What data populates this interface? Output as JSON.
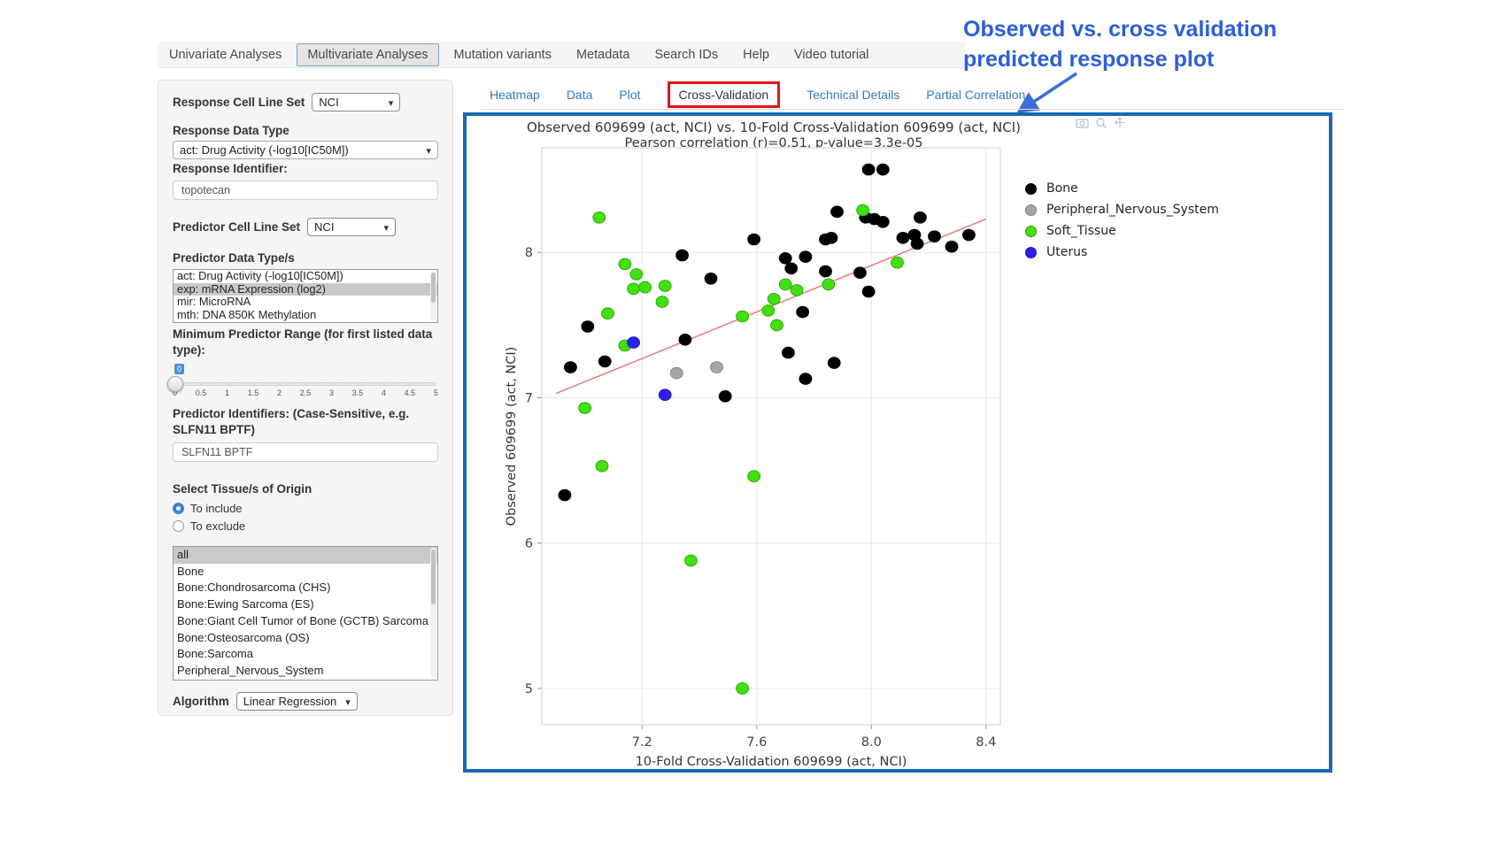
{
  "nav": {
    "tabs": [
      {
        "label": "Univariate Analyses",
        "active": false
      },
      {
        "label": "Multivariate Analyses",
        "active": true
      },
      {
        "label": "Mutation variants",
        "active": false
      },
      {
        "label": "Metadata",
        "active": false
      },
      {
        "label": "Search IDs",
        "active": false
      },
      {
        "label": "Help",
        "active": false
      },
      {
        "label": "Video tutorial",
        "active": false
      }
    ]
  },
  "annotation": {
    "line1": "Observed vs. cross validation",
    "line2": "predicted response plot"
  },
  "colors": {
    "annotation_blue": "#2b5fd9",
    "arrow_blue": "#3a6fd8",
    "frame_blue": "#1868b5",
    "highlight_red": "#e31515",
    "link_blue": "#337ab7"
  },
  "sidebar": {
    "response_cell_line_set": {
      "label": "Response Cell Line Set",
      "value": "NCI"
    },
    "response_data_type": {
      "label": "Response Data Type",
      "value": "act: Drug Activity (-log10[IC50M])"
    },
    "response_identifier": {
      "label": "Response Identifier:",
      "value": "topotecan"
    },
    "predictor_cell_line_set": {
      "label": "Predictor Cell Line Set",
      "value": "NCI"
    },
    "predictor_data_types": {
      "label": "Predictor Data Type/s",
      "options": [
        {
          "label": "act: Drug Activity (-log10[IC50M])",
          "selected": false
        },
        {
          "label": "exp: mRNA Expression (log2)",
          "selected": true
        },
        {
          "label": "mir: MicroRNA",
          "selected": false
        },
        {
          "label": "mth: DNA 850K Methylation",
          "selected": false
        }
      ]
    },
    "min_predictor_range": {
      "label": "Minimum Predictor Range (for first listed data type):",
      "value": "0",
      "ticks": [
        "0",
        "0.5",
        "1",
        "1.5",
        "2",
        "2.5",
        "3",
        "3.5",
        "4",
        "4.5",
        "5"
      ]
    },
    "predictor_identifiers": {
      "label": "Predictor Identifiers: (Case-Sensitive, e.g. SLFN11 BPTF)",
      "value": "SLFN11 BPTF"
    },
    "tissue_origin": {
      "label": "Select Tissue/s of Origin",
      "radios": [
        {
          "label": "To include",
          "selected": true
        },
        {
          "label": "To exclude",
          "selected": false
        }
      ],
      "options": [
        {
          "label": "all",
          "selected": true
        },
        {
          "label": "Bone",
          "selected": false
        },
        {
          "label": "Bone:Chondrosarcoma (CHS)",
          "selected": false
        },
        {
          "label": "Bone:Ewing Sarcoma (ES)",
          "selected": false
        },
        {
          "label": "Bone:Giant Cell Tumor of Bone (GCTB) Sarcoma",
          "selected": false
        },
        {
          "label": "Bone:Osteosarcoma (OS)",
          "selected": false
        },
        {
          "label": "Bone:Sarcoma",
          "selected": false
        },
        {
          "label": "Peripheral_Nervous_System",
          "selected": false
        }
      ]
    },
    "algorithm": {
      "label": "Algorithm",
      "value": "Linear Regression"
    }
  },
  "main": {
    "tabs": [
      {
        "label": "Heatmap",
        "active": false
      },
      {
        "label": "Data",
        "active": false
      },
      {
        "label": "Plot",
        "active": false
      },
      {
        "label": "Cross-Validation",
        "active": true
      },
      {
        "label": "Technical Details",
        "active": false
      },
      {
        "label": "Partial Correlation",
        "active": false
      }
    ]
  },
  "chart_data": {
    "type": "scatter",
    "title": "Observed 609699 (act, NCI) vs. 10-Fold Cross-Validation 609699 (act, NCI)",
    "subtitle": "Pearson correlation (r)=0.51, p-value=3.3e-05",
    "xlabel": "10-Fold Cross-Validation 609699 (act, NCI)",
    "ylabel": "Observed 609699 (act, NCI)",
    "xlim": [
      6.85,
      8.45
    ],
    "ylim": [
      4.75,
      8.72
    ],
    "xticks": [
      7.2,
      7.6,
      8.0,
      8.4
    ],
    "yticks": [
      5,
      6,
      7,
      8
    ],
    "grid": true,
    "legend_position": "right",
    "regression_line": {
      "x": [
        6.9,
        8.4
      ],
      "y": [
        7.03,
        8.23
      ],
      "color": "#f07070"
    },
    "series": [
      {
        "name": "Bone",
        "color": "#000000",
        "stroke": "#000000",
        "points": [
          [
            7.99,
            8.57
          ],
          [
            8.04,
            8.57
          ],
          [
            7.88,
            8.28
          ],
          [
            7.98,
            8.24
          ],
          [
            8.01,
            8.23
          ],
          [
            8.04,
            8.21
          ],
          [
            8.17,
            8.24
          ],
          [
            7.59,
            8.09
          ],
          [
            7.84,
            8.09
          ],
          [
            7.86,
            8.1
          ],
          [
            8.11,
            8.1
          ],
          [
            8.15,
            8.12
          ],
          [
            8.16,
            8.06
          ],
          [
            8.22,
            8.11
          ],
          [
            8.28,
            8.04
          ],
          [
            8.34,
            8.12
          ],
          [
            7.34,
            7.98
          ],
          [
            7.7,
            7.96
          ],
          [
            7.72,
            7.89
          ],
          [
            7.77,
            7.97
          ],
          [
            7.84,
            7.87
          ],
          [
            7.96,
            7.86
          ],
          [
            7.44,
            7.82
          ],
          [
            7.99,
            7.73
          ],
          [
            7.76,
            7.59
          ],
          [
            7.01,
            7.49
          ],
          [
            7.35,
            7.4
          ],
          [
            7.71,
            7.31
          ],
          [
            6.95,
            7.21
          ],
          [
            7.07,
            7.25
          ],
          [
            7.87,
            7.24
          ],
          [
            7.77,
            7.13
          ],
          [
            7.49,
            7.01
          ],
          [
            6.93,
            6.33
          ]
        ]
      },
      {
        "name": "Peripheral_Nervous_System",
        "color": "#a6a6a6",
        "stroke": "#7d7d7d",
        "points": [
          [
            7.32,
            7.17
          ],
          [
            7.46,
            7.21
          ]
        ]
      },
      {
        "name": "Soft_Tissue",
        "color": "#41e00e",
        "stroke": "#1f9e06",
        "points": [
          [
            7.05,
            8.24
          ],
          [
            7.97,
            8.29
          ],
          [
            8.09,
            7.93
          ],
          [
            7.14,
            7.92
          ],
          [
            7.18,
            7.85
          ],
          [
            7.17,
            7.75
          ],
          [
            7.21,
            7.76
          ],
          [
            7.28,
            7.77
          ],
          [
            7.7,
            7.78
          ],
          [
            7.74,
            7.74
          ],
          [
            7.85,
            7.78
          ],
          [
            7.27,
            7.66
          ],
          [
            7.66,
            7.68
          ],
          [
            7.08,
            7.58
          ],
          [
            7.55,
            7.56
          ],
          [
            7.64,
            7.6
          ],
          [
            7.67,
            7.5
          ],
          [
            7.14,
            7.36
          ],
          [
            7.0,
            6.93
          ],
          [
            7.06,
            6.53
          ],
          [
            7.59,
            6.46
          ],
          [
            7.37,
            5.88
          ],
          [
            7.55,
            5.0
          ]
        ]
      },
      {
        "name": "Uterus",
        "color": "#2b22e8",
        "stroke": "#1b14c9",
        "points": [
          [
            7.17,
            7.38
          ],
          [
            7.28,
            7.02
          ]
        ]
      }
    ]
  }
}
